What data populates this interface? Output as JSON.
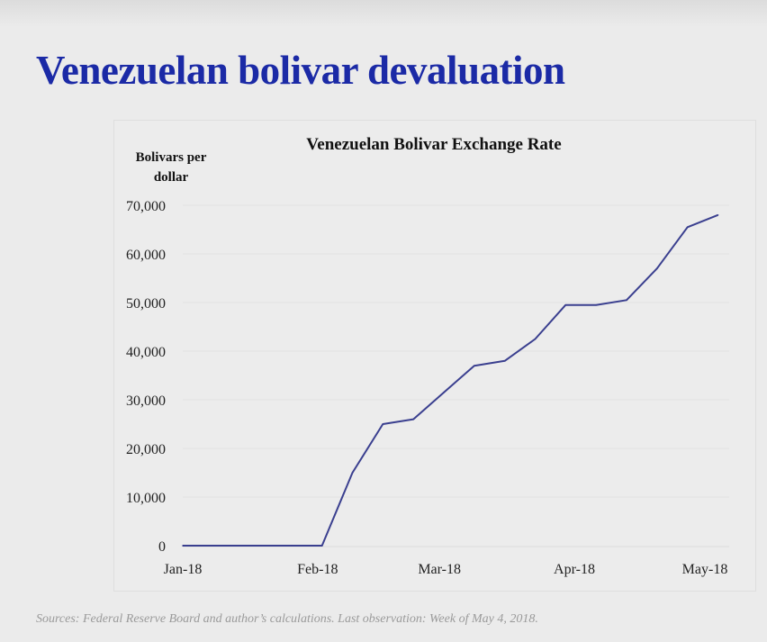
{
  "slide": {
    "title": "Venezuelan bolivar devaluation",
    "source_note": "Sources: Federal Reserve Board and author’s calculations. Last observation: Week of May 4, 2018."
  },
  "colors": {
    "title": "#1b2aa6",
    "line": "#3a3f8f",
    "background": "#ebebeb"
  },
  "chart_data": {
    "type": "line",
    "title": "Venezuelan Bolivar Exchange Rate",
    "ylabel_lines": [
      "Bolivars per",
      "dollar"
    ],
    "xlabel": "",
    "ylim": [
      0,
      70000
    ],
    "yticks": [
      0,
      10000,
      20000,
      30000,
      40000,
      50000,
      60000,
      70000
    ],
    "ytick_labels": [
      "0",
      "10,000",
      "20,000",
      "30,000",
      "40,000",
      "50,000",
      "60,000",
      "70,000"
    ],
    "xlim": [
      "2018-01-01",
      "2018-05-01"
    ],
    "xticks": [
      "2018-01-01",
      "2018-02-01",
      "2018-03-01",
      "2018-04-01",
      "2018-05-01"
    ],
    "xtick_labels": [
      "Jan-18",
      "Feb-18",
      "Mar-18",
      "Apr-18",
      "May-18"
    ],
    "grid": true,
    "series": [
      {
        "x": [
          "2018-01-01",
          "2018-01-05",
          "2018-01-12",
          "2018-01-19",
          "2018-01-26",
          "2018-02-02",
          "2018-02-09",
          "2018-02-16",
          "2018-02-23",
          "2018-03-02",
          "2018-03-09",
          "2018-03-16",
          "2018-03-23",
          "2018-03-30",
          "2018-04-06",
          "2018-04-13",
          "2018-04-20",
          "2018-04-27",
          "2018-05-04"
        ],
        "y": [
          0,
          0,
          0,
          0,
          0,
          0,
          15000,
          25000,
          26000,
          31500,
          37000,
          38000,
          42500,
          49500,
          49500,
          50500,
          57000,
          65500,
          68000
        ]
      }
    ]
  }
}
